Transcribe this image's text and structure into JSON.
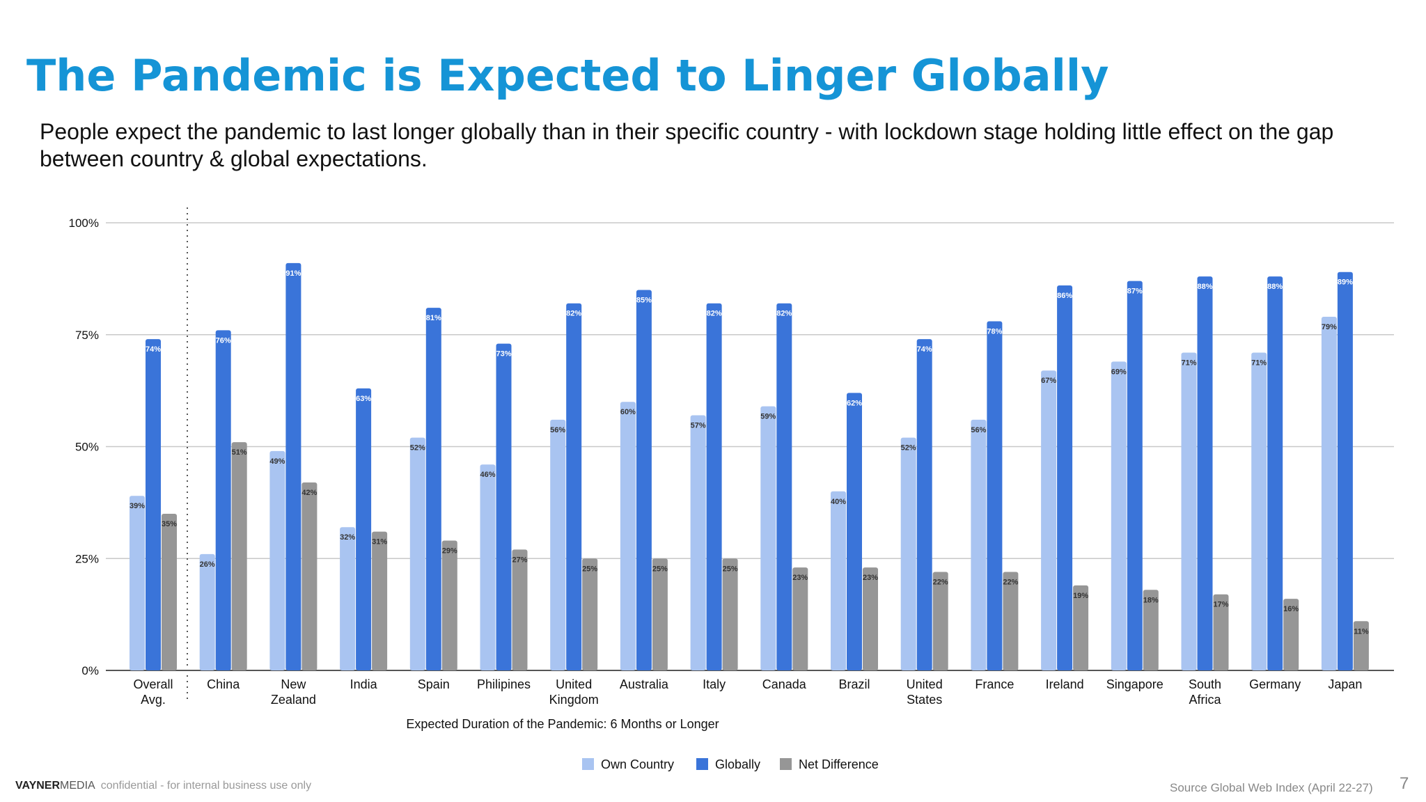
{
  "slide": {
    "title": "The Pandemic is Expected to Linger Globally",
    "subtitle": "People expect the pandemic to last longer globally than in their specific country - with lockdown stage holding little effect on the gap between country & global expectations.",
    "brand_bold": "VAYNER",
    "brand_light": "MEDIA",
    "confidential": "confidential - for internal business use only",
    "source": "Source Global Web Index (April 22-27)",
    "page_number": "7"
  },
  "colors": {
    "title": "#1594d6",
    "own_country": "#a9c4f1",
    "globally": "#3a74d9",
    "net_difference": "#969696",
    "grid": "#c8c8c8",
    "axis": "#555555"
  },
  "chart_data": {
    "type": "bar",
    "title": "",
    "xlabel": "Expected Duration of the Pandemic: 6 Months or Longer",
    "ylabel": "",
    "ylim": [
      0,
      100
    ],
    "yticks": [
      "0%",
      "25%",
      "50%",
      "75%",
      "100%"
    ],
    "grid": true,
    "legend_position": "bottom",
    "categories": [
      [
        "Overall",
        "Avg."
      ],
      [
        "China"
      ],
      [
        "New",
        "Zealand"
      ],
      [
        "India"
      ],
      [
        "Spain"
      ],
      [
        "Philipines"
      ],
      [
        "United",
        "Kingdom"
      ],
      [
        "Australia"
      ],
      [
        "Italy"
      ],
      [
        "Canada"
      ],
      [
        "Brazil"
      ],
      [
        "United",
        "States"
      ],
      [
        "France"
      ],
      [
        "Ireland"
      ],
      [
        "Singapore"
      ],
      [
        "South",
        "Africa"
      ],
      [
        "Germany"
      ],
      [
        "Japan"
      ]
    ],
    "series": [
      {
        "name": "Own Country",
        "values": [
          39,
          26,
          49,
          32,
          52,
          46,
          56,
          60,
          57,
          59,
          40,
          52,
          56,
          67,
          69,
          71,
          71,
          79
        ]
      },
      {
        "name": "Globally",
        "values": [
          74,
          76,
          91,
          63,
          81,
          73,
          82,
          85,
          82,
          82,
          62,
          74,
          78,
          86,
          87,
          88,
          88,
          89
        ]
      },
      {
        "name": "Net Difference",
        "values": [
          35,
          51,
          42,
          31,
          29,
          27,
          25,
          25,
          25,
          23,
          23,
          22,
          22,
          19,
          18,
          17,
          16,
          11
        ]
      }
    ]
  }
}
